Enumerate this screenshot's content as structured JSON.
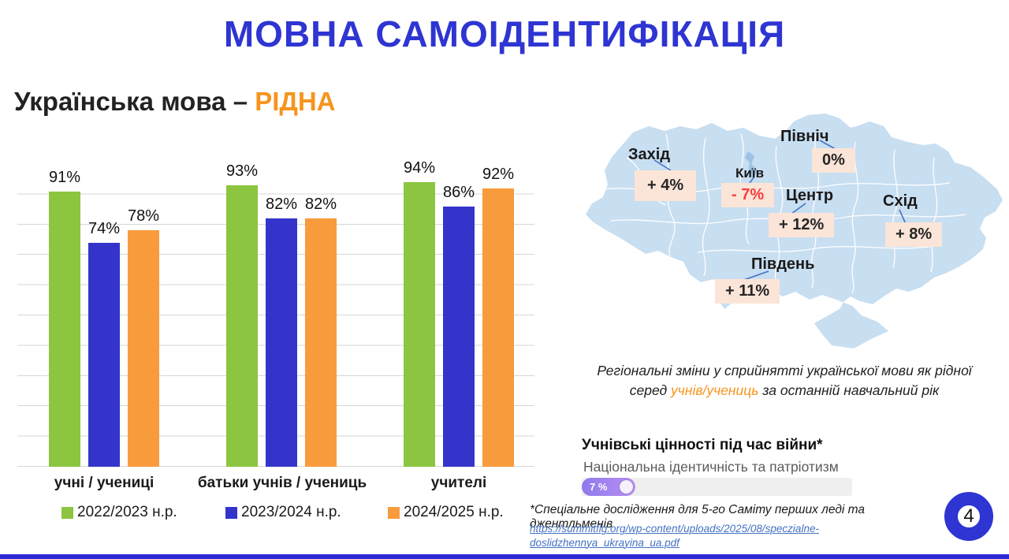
{
  "title": "МОВНА САМОІДЕНТИФІКАЦІЯ",
  "subtitle_prefix": "Українська мова – ",
  "subtitle_highlight": "РІДНА",
  "chart_data": {
    "type": "bar",
    "categories": [
      "учні / учениці",
      "батьки учнів / учениць",
      "учителі"
    ],
    "series": [
      {
        "name": "2022/2023 н.р.",
        "color": "#8CC540",
        "values": [
          91,
          93,
          94
        ]
      },
      {
        "name": "2023/2024 н.р.",
        "color": "#3434CB",
        "values": [
          74,
          82,
          86
        ]
      },
      {
        "name": "2024/2025 н.р.",
        "color": "#F89B3C",
        "values": [
          78,
          82,
          92
        ]
      }
    ],
    "value_suffix": "%",
    "ylim": [
      0,
      100
    ],
    "gridline_step": 10,
    "legend_position": "bottom"
  },
  "map": {
    "regions": [
      {
        "name": "Захід",
        "value": "+ 4%"
      },
      {
        "name": "Північ",
        "value": "0%"
      },
      {
        "name": "Київ",
        "value": "- 7%",
        "negative": true
      },
      {
        "name": "Центр",
        "value": "+ 12%"
      },
      {
        "name": "Схід",
        "value": "+ 8%"
      },
      {
        "name": "Південь",
        "value": "+ 11%"
      }
    ],
    "caption_line1": "Регіональні зміни у сприйнятті української мови як рідної",
    "caption_part1": "серед ",
    "caption_highlight": "учнів/учениць",
    "caption_part2": " за останній навчальний рік"
  },
  "values_section": {
    "heading": "Учнівські цінності під час війни*",
    "item_label": "Національна ідентичність та патріотизм",
    "percent_label": "7 %",
    "percent_value": 7
  },
  "footnote": "*Спеціальне дослідження для 5-го Саміту перших леді та джентльменів",
  "source_url_line1": "https://summitflg.org/wp-content/uploads/2025/08/speczialne-",
  "source_url_line2": "doslidzhennya_ukrayina_ua.pdf",
  "page_number": "4",
  "colors": {
    "accent_blue": "#2E35D2",
    "bar_green": "#8CC540",
    "bar_blue": "#3434CB",
    "bar_orange": "#F89B3C",
    "subtitle_orange": "#F7941E",
    "map_fill": "#C8DEF1",
    "label_box_peach": "#FBE5D8",
    "negative_red": "#FA3E3E",
    "link_blue": "#4472C4",
    "progress_gradient": [
      "#8f7aec",
      "#b88ff2"
    ]
  }
}
